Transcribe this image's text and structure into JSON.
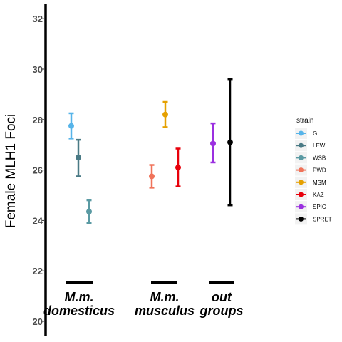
{
  "chart_data": {
    "type": "scatter",
    "ylabel": "Female MLH1 Foci",
    "ylim": [
      20,
      32.5
    ],
    "yticks": [
      20,
      22,
      24,
      26,
      28,
      30,
      32
    ],
    "legend": {
      "title": "strain",
      "position": "right"
    },
    "series": [
      {
        "name": "G",
        "color": "#56B4E9",
        "mean": 27.75,
        "lower": 27.25,
        "upper": 28.25
      },
      {
        "name": "LEW",
        "color": "#4A7A85",
        "mean": 26.5,
        "lower": 25.75,
        "upper": 27.2
      },
      {
        "name": "WSB",
        "color": "#5A9AA3",
        "mean": 24.35,
        "lower": 23.9,
        "upper": 24.8
      },
      {
        "name": "PWD",
        "color": "#F0735A",
        "mean": 25.75,
        "lower": 25.3,
        "upper": 26.2
      },
      {
        "name": "MSM",
        "color": "#E5A000",
        "mean": 28.2,
        "lower": 27.7,
        "upper": 28.7
      },
      {
        "name": "KAZ",
        "color": "#E8000B",
        "mean": 26.1,
        "lower": 25.35,
        "upper": 26.85
      },
      {
        "name": "SPIC",
        "color": "#9B30E0",
        "mean": 27.05,
        "lower": 26.3,
        "upper": 27.85
      },
      {
        "name": "SPRET",
        "color": "#000000",
        "mean": 27.1,
        "lower": 24.6,
        "upper": 29.6
      }
    ],
    "groups": [
      {
        "line1": "M.m.",
        "line2": "domesticus",
        "strains": [
          "G",
          "LEW",
          "WSB"
        ]
      },
      {
        "line1": "M.m.",
        "line2": "musculus",
        "strains": [
          "PWD",
          "MSM",
          "KAZ"
        ]
      },
      {
        "line1": "out",
        "line2": "groups",
        "strains": [
          "SPIC",
          "SPRET"
        ]
      }
    ]
  }
}
